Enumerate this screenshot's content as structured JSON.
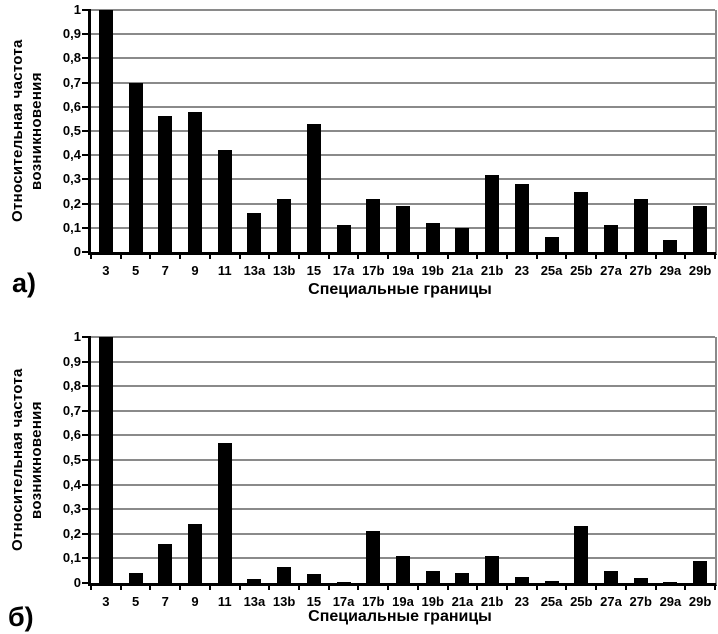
{
  "colors": {
    "bar": "#000000",
    "grid": "#8a8a8a",
    "axis": "#000000",
    "text": "#000000",
    "background": "#ffffff"
  },
  "chart_data": [
    {
      "type": "bar",
      "panel_label": "а)",
      "xlabel": "Специальные границы",
      "ylabel_line1": "Относительная частота",
      "ylabel_line2": "возникновения",
      "ylim": [
        0,
        1
      ],
      "grid": true,
      "legend": null,
      "ytick_labels": [
        "1",
        "0,9",
        "0,8",
        "0,7",
        "0,6",
        "0,5",
        "0,4",
        "0,3",
        "0,2",
        "0,1",
        "0"
      ],
      "ytick_values": [
        1,
        0.9,
        0.8,
        0.7,
        0.6,
        0.5,
        0.4,
        0.3,
        0.2,
        0.1,
        0
      ],
      "categories": [
        "3",
        "5",
        "7",
        "9",
        "11",
        "13a",
        "13b",
        "15",
        "17a",
        "17b",
        "19a",
        "19b",
        "21a",
        "21b",
        "23",
        "25a",
        "25b",
        "27a",
        "27b",
        "29a",
        "29b"
      ],
      "values": [
        1.0,
        0.7,
        0.56,
        0.58,
        0.42,
        0.16,
        0.22,
        0.53,
        0.11,
        0.22,
        0.19,
        0.12,
        0.1,
        0.32,
        0.28,
        0.06,
        0.25,
        0.11,
        0.22,
        0.05,
        0.19
      ]
    },
    {
      "type": "bar",
      "panel_label": "б)",
      "xlabel": "Специальные границы",
      "ylabel_line1": "Относительная частота",
      "ylabel_line2": "возникновения",
      "ylim": [
        0,
        1
      ],
      "grid": true,
      "legend": null,
      "ytick_labels": [
        "1",
        "0,9",
        "0,8",
        "0,7",
        "0,6",
        "0,5",
        "0,4",
        "0,3",
        "0,2",
        "0,1",
        "0"
      ],
      "ytick_values": [
        1,
        0.9,
        0.8,
        0.7,
        0.6,
        0.5,
        0.4,
        0.3,
        0.2,
        0.1,
        0
      ],
      "categories": [
        "3",
        "5",
        "7",
        "9",
        "11",
        "13a",
        "13b",
        "15",
        "17a",
        "17b",
        "19a",
        "19b",
        "21a",
        "21b",
        "23",
        "25a",
        "25b",
        "27a",
        "27b",
        "29a",
        "29b"
      ],
      "values": [
        1.0,
        0.04,
        0.16,
        0.24,
        0.57,
        0.015,
        0.065,
        0.035,
        0.005,
        0.21,
        0.11,
        0.05,
        0.04,
        0.11,
        0.025,
        0.01,
        0.23,
        0.05,
        0.02,
        0.005,
        0.09
      ]
    }
  ]
}
